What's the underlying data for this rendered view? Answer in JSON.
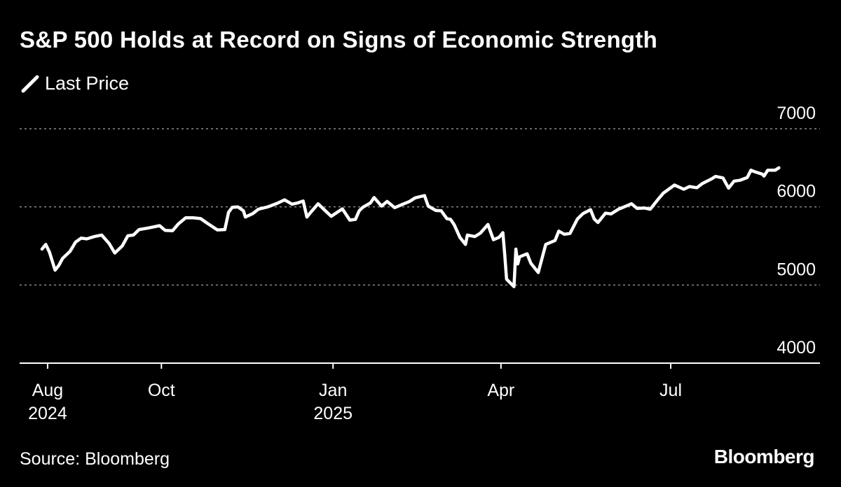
{
  "chart_data": {
    "type": "line",
    "title": "S&P 500 Holds at Record on Signs of Economic Strength",
    "legend": {
      "placement": "top-left",
      "entries": [
        "Last Price"
      ]
    },
    "ylim": [
      4000,
      7000
    ],
    "yticks": [
      7000,
      6000,
      5000,
      4000
    ],
    "grid": true,
    "x_ticks": [
      {
        "date": "2024-08-01",
        "label": "Aug",
        "sublabel": "2024"
      },
      {
        "date": "2024-10-01",
        "label": "Oct",
        "sublabel": ""
      },
      {
        "date": "2025-01-01",
        "label": "Jan",
        "sublabel": "2025"
      },
      {
        "date": "2025-04-01",
        "label": "Apr",
        "sublabel": ""
      },
      {
        "date": "2025-07-01",
        "label": "Jul",
        "sublabel": ""
      }
    ],
    "x_range": [
      "2024-07-17",
      "2025-09-19"
    ],
    "series": [
      {
        "name": "Last Price",
        "color": "#ffffff",
        "points": [
          [
            "2024-07-29",
            5460
          ],
          [
            "2024-07-31",
            5520
          ],
          [
            "2024-08-02",
            5420
          ],
          [
            "2024-08-05",
            5190
          ],
          [
            "2024-08-07",
            5250
          ],
          [
            "2024-08-09",
            5340
          ],
          [
            "2024-08-13",
            5430
          ],
          [
            "2024-08-16",
            5550
          ],
          [
            "2024-08-19",
            5600
          ],
          [
            "2024-08-22",
            5590
          ],
          [
            "2024-08-26",
            5620
          ],
          [
            "2024-08-30",
            5640
          ],
          [
            "2024-09-03",
            5530
          ],
          [
            "2024-09-06",
            5410
          ],
          [
            "2024-09-10",
            5500
          ],
          [
            "2024-09-13",
            5630
          ],
          [
            "2024-09-16",
            5640
          ],
          [
            "2024-09-19",
            5710
          ],
          [
            "2024-09-24",
            5730
          ],
          [
            "2024-09-30",
            5760
          ],
          [
            "2024-10-03",
            5700
          ],
          [
            "2024-10-07",
            5695
          ],
          [
            "2024-10-10",
            5780
          ],
          [
            "2024-10-14",
            5860
          ],
          [
            "2024-10-18",
            5860
          ],
          [
            "2024-10-22",
            5850
          ],
          [
            "2024-10-25",
            5800
          ],
          [
            "2024-10-31",
            5705
          ],
          [
            "2024-11-04",
            5710
          ],
          [
            "2024-11-06",
            5930
          ],
          [
            "2024-11-08",
            5995
          ],
          [
            "2024-11-11",
            6000
          ],
          [
            "2024-11-14",
            5950
          ],
          [
            "2024-11-15",
            5870
          ],
          [
            "2024-11-19",
            5915
          ],
          [
            "2024-11-22",
            5970
          ],
          [
            "2024-11-27",
            6000
          ],
          [
            "2024-12-02",
            6045
          ],
          [
            "2024-12-06",
            6090
          ],
          [
            "2024-12-10",
            6035
          ],
          [
            "2024-12-13",
            6050
          ],
          [
            "2024-12-16",
            6075
          ],
          [
            "2024-12-18",
            5870
          ],
          [
            "2024-12-20",
            5930
          ],
          [
            "2024-12-24",
            6040
          ],
          [
            "2024-12-27",
            5970
          ],
          [
            "2024-12-31",
            5880
          ],
          [
            "2025-01-06",
            5975
          ],
          [
            "2025-01-10",
            5830
          ],
          [
            "2025-01-13",
            5840
          ],
          [
            "2025-01-15",
            5950
          ],
          [
            "2025-01-17",
            5995
          ],
          [
            "2025-01-21",
            6050
          ],
          [
            "2025-01-23",
            6120
          ],
          [
            "2025-01-27",
            6010
          ],
          [
            "2025-01-30",
            6070
          ],
          [
            "2025-02-03",
            5990
          ],
          [
            "2025-02-07",
            6030
          ],
          [
            "2025-02-11",
            6070
          ],
          [
            "2025-02-14",
            6115
          ],
          [
            "2025-02-19",
            6145
          ],
          [
            "2025-02-21",
            6010
          ],
          [
            "2025-02-25",
            5955
          ],
          [
            "2025-02-28",
            5950
          ],
          [
            "2025-03-03",
            5850
          ],
          [
            "2025-03-05",
            5840
          ],
          [
            "2025-03-07",
            5770
          ],
          [
            "2025-03-10",
            5610
          ],
          [
            "2025-03-13",
            5520
          ],
          [
            "2025-03-14",
            5640
          ],
          [
            "2025-03-18",
            5620
          ],
          [
            "2025-03-21",
            5665
          ],
          [
            "2025-03-25",
            5775
          ],
          [
            "2025-03-28",
            5580
          ],
          [
            "2025-03-31",
            5610
          ],
          [
            "2025-04-02",
            5670
          ],
          [
            "2025-04-03",
            5400
          ],
          [
            "2025-04-04",
            5075
          ],
          [
            "2025-04-08",
            4980
          ],
          [
            "2025-04-09",
            5460
          ],
          [
            "2025-04-10",
            5270
          ],
          [
            "2025-04-11",
            5360
          ],
          [
            "2025-04-15",
            5400
          ],
          [
            "2025-04-17",
            5280
          ],
          [
            "2025-04-21",
            5160
          ],
          [
            "2025-04-22', 5290",
            5290
          ],
          [
            "2025-04-25",
            5520
          ],
          [
            "2025-04-30",
            5570
          ],
          [
            "2025-05-02",
            5690
          ],
          [
            "2025-05-05",
            5650
          ],
          [
            "2025-05-08",
            5660
          ],
          [
            "2025-05-12",
            5845
          ],
          [
            "2025-05-15",
            5915
          ],
          [
            "2025-05-19",
            5965
          ],
          [
            "2025-05-21",
            5845
          ],
          [
            "2025-05-23",
            5800
          ],
          [
            "2025-05-27",
            5920
          ],
          [
            "2025-05-30",
            5910
          ],
          [
            "2025-06-03",
            5970
          ],
          [
            "2025-06-06",
            6000
          ],
          [
            "2025-06-10",
            6040
          ],
          [
            "2025-06-13",
            5980
          ],
          [
            "2025-06-17",
            5985
          ],
          [
            "2025-06-20",
            5970
          ],
          [
            "2025-06-24",
            6090
          ],
          [
            "2025-06-27",
            6175
          ],
          [
            "2025-07-03",
            6280
          ],
          [
            "2025-07-08",
            6225
          ],
          [
            "2025-07-11",
            6260
          ],
          [
            "2025-07-15",
            6245
          ],
          [
            "2025-07-18",
            6300
          ],
          [
            "2025-07-23",
            6360
          ],
          [
            "2025-07-25",
            6390
          ],
          [
            "2025-07-29",
            6370
          ],
          [
            "2025-08-01",
            6240
          ],
          [
            "2025-08-04",
            6330
          ],
          [
            "2025-08-07",
            6340
          ],
          [
            "2025-08-11",
            6375
          ],
          [
            "2025-08-13",
            6470
          ],
          [
            "2025-08-15",
            6450
          ],
          [
            "2025-08-19",
            6420
          ],
          [
            "2025-08-20",
            6395
          ],
          [
            "2025-08-22",
            6470
          ],
          [
            "2025-08-26",
            6470
          ],
          [
            "2025-08-28",
            6500
          ]
        ]
      }
    ],
    "source": "Source: Bloomberg",
    "brand": "Bloomberg"
  }
}
